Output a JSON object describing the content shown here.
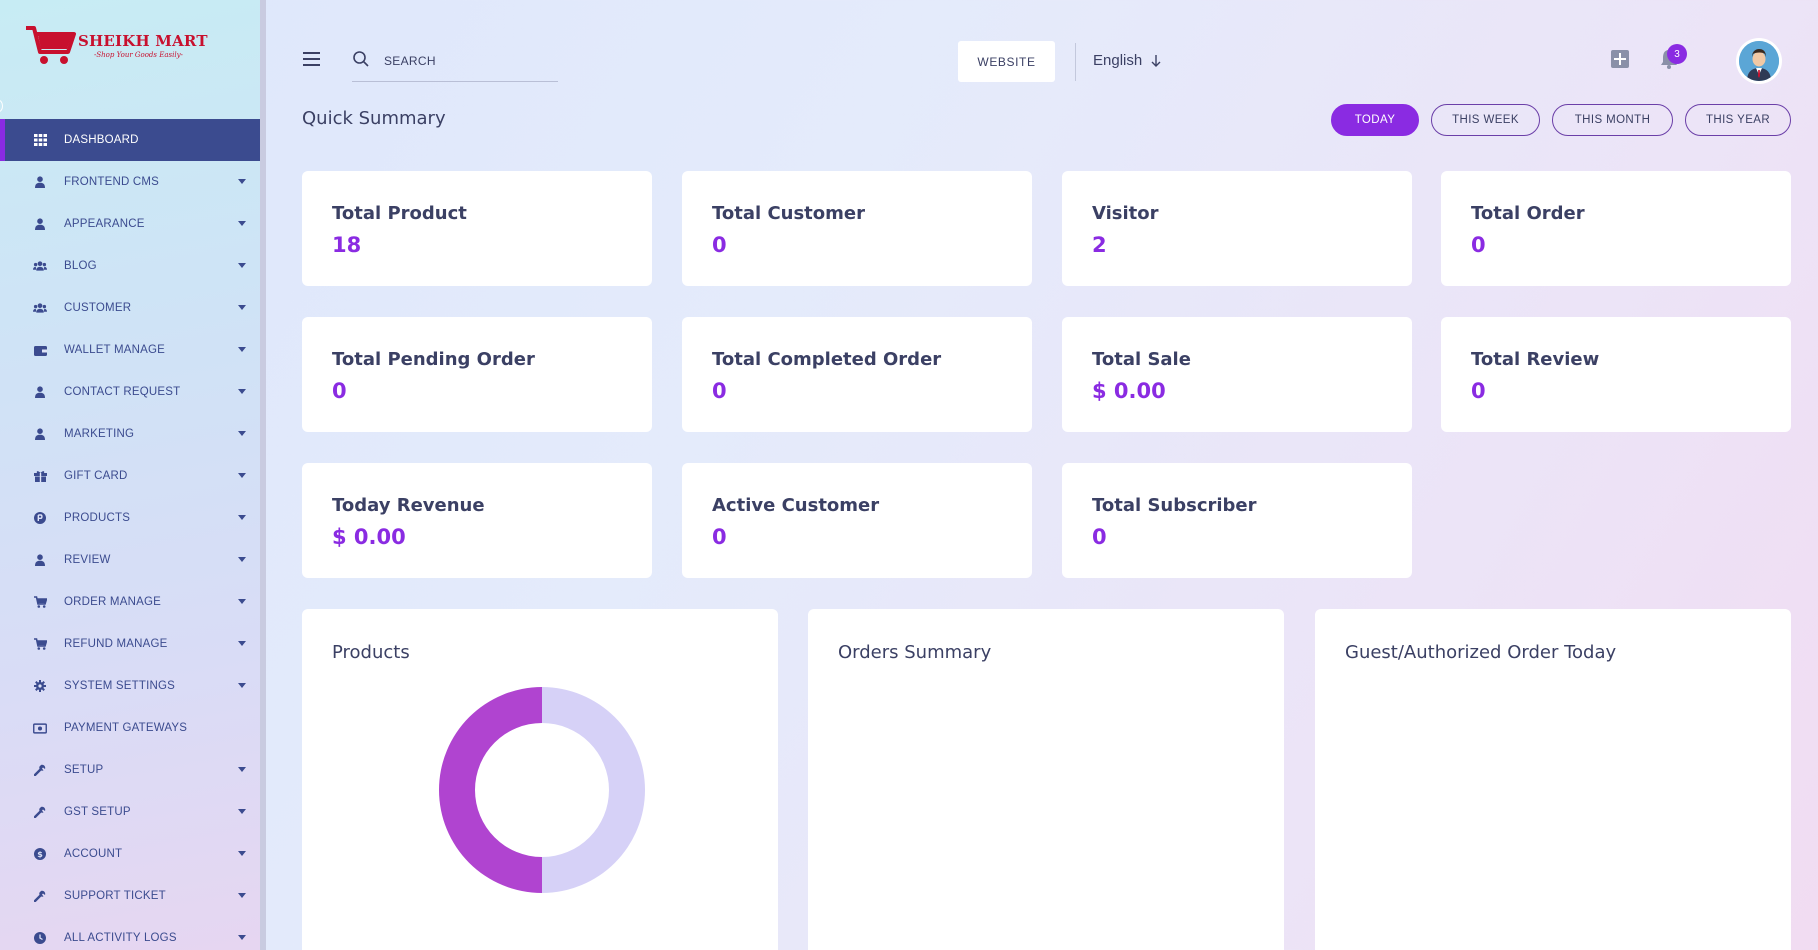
{
  "logo": {
    "brand": "SHEIKH MART",
    "tagline": "-Shop Your Goods Easily-"
  },
  "sidebar": {
    "items": [
      {
        "label": "DASHBOARD",
        "icon": "grid-icon",
        "active": true,
        "caret": false
      },
      {
        "label": "FRONTEND CMS",
        "icon": "user-icon",
        "caret": true
      },
      {
        "label": "APPEARANCE",
        "icon": "user-icon",
        "caret": true
      },
      {
        "label": "BLOG",
        "icon": "users-icon",
        "caret": true
      },
      {
        "label": "CUSTOMER",
        "icon": "users-icon",
        "caret": true
      },
      {
        "label": "WALLET MANAGE",
        "icon": "wallet-icon",
        "caret": true
      },
      {
        "label": "CONTACT REQUEST",
        "icon": "user-icon",
        "caret": true
      },
      {
        "label": "MARKETING",
        "icon": "user-icon",
        "caret": true
      },
      {
        "label": "GIFT CARD",
        "icon": "gift-icon",
        "caret": true
      },
      {
        "label": "PRODUCTS",
        "icon": "product-hunt-icon",
        "caret": true
      },
      {
        "label": "REVIEW",
        "icon": "user-icon",
        "caret": true
      },
      {
        "label": "ORDER MANAGE",
        "icon": "cart-icon",
        "caret": true
      },
      {
        "label": "REFUND MANAGE",
        "icon": "cart-icon",
        "caret": true
      },
      {
        "label": "SYSTEM SETTINGS",
        "icon": "gear-icon",
        "caret": true
      },
      {
        "label": "PAYMENT GATEWAYS",
        "icon": "money-icon",
        "caret": false
      },
      {
        "label": "SETUP",
        "icon": "wrench-icon",
        "caret": true
      },
      {
        "label": "GST SETUP",
        "icon": "wrench-icon",
        "caret": true
      },
      {
        "label": "ACCOUNT",
        "icon": "account-icon",
        "caret": true
      },
      {
        "label": "SUPPORT TICKET",
        "icon": "wrench-icon",
        "caret": true
      },
      {
        "label": "ALL ACTIVITY LOGS",
        "icon": "clock-icon",
        "caret": true
      }
    ]
  },
  "header": {
    "search_placeholder": "SEARCH",
    "website_label": "WEBSITE",
    "language": "English",
    "notification_count": "3"
  },
  "summary": {
    "title": "Quick Summary",
    "filters": [
      {
        "label": "TODAY",
        "active": true
      },
      {
        "label": "THIS WEEK",
        "active": false
      },
      {
        "label": "THIS MONTH",
        "active": false
      },
      {
        "label": "THIS YEAR",
        "active": false
      }
    ],
    "cards": [
      {
        "label": "Total Product",
        "value": "18"
      },
      {
        "label": "Total Customer",
        "value": "0"
      },
      {
        "label": "Visitor",
        "value": "2"
      },
      {
        "label": "Total Order",
        "value": "0"
      },
      {
        "label": "Total Pending Order",
        "value": "0"
      },
      {
        "label": "Total Completed Order",
        "value": "0"
      },
      {
        "label": "Total Sale",
        "value": "$ 0.00"
      },
      {
        "label": "Total Review",
        "value": "0"
      },
      {
        "label": "Today Revenue",
        "value": "$ 0.00"
      },
      {
        "label": "Active Customer",
        "value": "0"
      },
      {
        "label": "Total Subscriber",
        "value": "0"
      }
    ]
  },
  "panels": [
    {
      "title": "Products"
    },
    {
      "title": "Orders Summary"
    },
    {
      "title": "Guest/Authorized Order Today"
    }
  ],
  "chart_data": {
    "type": "pie",
    "title": "Products",
    "slices": [
      {
        "value": 50,
        "color": "#b044d0"
      },
      {
        "value": 50,
        "color": "#d6d1f7"
      }
    ]
  },
  "colors": {
    "accent": "#8a2be2",
    "nav": "#3b4b8f",
    "text": "#3b4064"
  }
}
